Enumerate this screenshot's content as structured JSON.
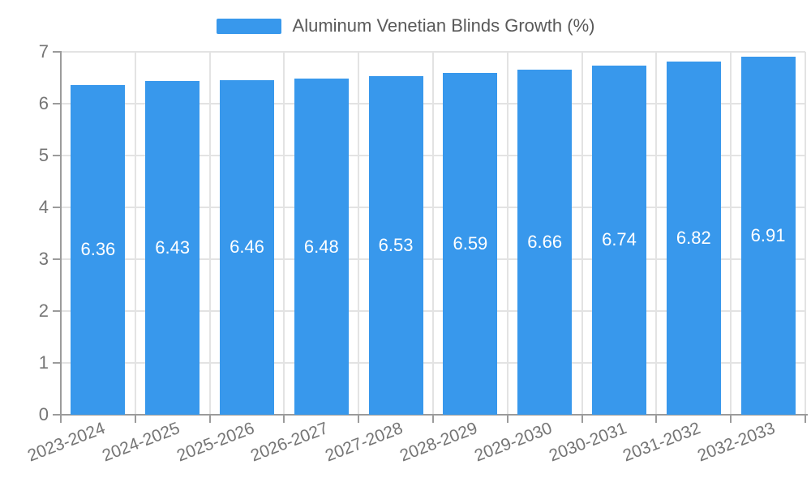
{
  "chart_data": {
    "type": "bar",
    "title": "",
    "legend_label": "Aluminum Venetian Blinds Growth (%)",
    "legend_position": "top-center",
    "categories": [
      "2023-2024",
      "2024-2025",
      "2025-2026",
      "2026-2027",
      "2027-2028",
      "2028-2029",
      "2029-2030",
      "2030-2031",
      "2031-2032",
      "2032-2033"
    ],
    "series": [
      {
        "name": "Aluminum Venetian Blinds Growth (%)",
        "values": [
          6.36,
          6.43,
          6.46,
          6.48,
          6.53,
          6.59,
          6.66,
          6.74,
          6.82,
          6.91
        ],
        "color": "#3898EC"
      }
    ],
    "value_labels": [
      "6.36",
      "6.43",
      "6.46",
      "6.48",
      "6.53",
      "6.59",
      "6.66",
      "6.74",
      "6.82",
      "6.91"
    ],
    "xlabel": "",
    "ylabel": "",
    "ylim": [
      0,
      7
    ],
    "ytick_labels": [
      "0",
      "1",
      "2",
      "3",
      "4",
      "5",
      "6",
      "7"
    ],
    "grid": true,
    "x_label_rotation_deg": -21,
    "colors": {
      "bar": "#3898EC",
      "grid_line": "#E3E3E3",
      "axis_line": "#9B9B9B",
      "tick_text": "#757575",
      "legend_text": "#595959",
      "value_label_text": "#FFFFFF",
      "background": "#FFFFFF"
    }
  }
}
